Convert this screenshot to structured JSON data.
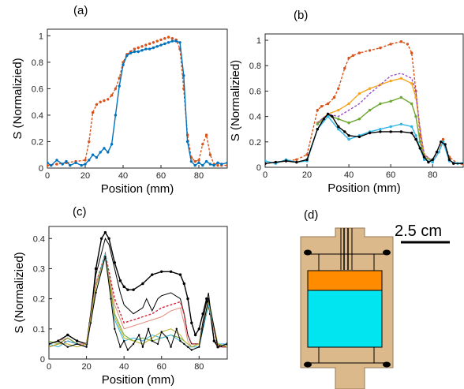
{
  "panels": {
    "a": {
      "label": "(a)"
    },
    "b": {
      "label": "(b)"
    },
    "c": {
      "label": "(c)"
    },
    "d": {
      "label": "(d)",
      "scale_bar_text": "2.5 cm"
    }
  },
  "colors": {
    "orange": "#D95319",
    "blue": "#0072BD",
    "yellow": "#F5A623",
    "purple": "#9B4FC6",
    "green": "#6DA631",
    "cyan": "#2FB5E8",
    "black": "#000000",
    "red": "#D6283A",
    "pink": "#E08A7A",
    "olive": "#B9B22A",
    "device_body": "#DBB98B",
    "device_orange": "#FF8C00",
    "device_cyan": "#00E5F0"
  },
  "chart_data": [
    {
      "panel": "a",
      "type": "line",
      "xlabel": "Position (mm)",
      "ylabel": "S (Normalizied)",
      "xlim": [
        0,
        95
      ],
      "ylim": [
        0,
        1.05
      ],
      "xticks": [
        0,
        20,
        40,
        60,
        80
      ],
      "yticks": [
        0,
        0.2,
        0.4,
        0.6,
        0.8,
        1
      ],
      "series": [
        {
          "color": "orange",
          "style": "dashed-markers",
          "x": [
            0,
            5,
            10,
            15,
            20,
            22,
            24,
            26,
            28,
            30,
            32,
            34,
            36,
            38,
            40,
            42,
            44,
            46,
            48,
            50,
            52,
            54,
            56,
            58,
            60,
            62,
            64,
            66,
            68,
            70,
            72,
            74,
            76,
            78,
            80,
            82,
            84,
            86,
            88,
            90,
            92,
            95
          ],
          "y": [
            0.02,
            0.03,
            0.04,
            0.05,
            0.06,
            0.2,
            0.42,
            0.48,
            0.5,
            0.51,
            0.52,
            0.55,
            0.6,
            0.68,
            0.8,
            0.86,
            0.88,
            0.9,
            0.91,
            0.92,
            0.93,
            0.94,
            0.95,
            0.96,
            0.97,
            0.98,
            0.99,
            0.98,
            0.97,
            0.9,
            0.6,
            0.25,
            0.08,
            0.05,
            0.06,
            0.18,
            0.25,
            0.1,
            0.03,
            0.02,
            0.02,
            0.02
          ]
        },
        {
          "color": "blue",
          "style": "solid-markers",
          "x": [
            0,
            2,
            5,
            8,
            10,
            12,
            15,
            18,
            20,
            22,
            24,
            26,
            28,
            30,
            32,
            34,
            36,
            38,
            40,
            42,
            44,
            46,
            48,
            50,
            52,
            54,
            56,
            58,
            60,
            62,
            64,
            66,
            68,
            70,
            72,
            74,
            76,
            78,
            80,
            82,
            84,
            86,
            88,
            90,
            92,
            95
          ],
          "y": [
            0.04,
            0.02,
            0.06,
            0.03,
            0.05,
            0.02,
            0.04,
            0.02,
            0.03,
            0.06,
            0.1,
            0.08,
            0.12,
            0.15,
            0.12,
            0.18,
            0.4,
            0.62,
            0.78,
            0.85,
            0.87,
            0.88,
            0.88,
            0.89,
            0.9,
            0.9,
            0.91,
            0.92,
            0.93,
            0.94,
            0.95,
            0.96,
            0.96,
            0.95,
            0.7,
            0.2,
            0.05,
            0.02,
            0.04,
            0.02,
            0.05,
            0.03,
            0.02,
            0.04,
            0.03,
            0.04
          ]
        }
      ]
    },
    {
      "panel": "b",
      "type": "line",
      "xlabel": "Position (mm)",
      "ylabel": "S (Normalizied)",
      "xlim": [
        0,
        95
      ],
      "ylim": [
        0,
        1.05
      ],
      "xticks": [
        0,
        20,
        40,
        60,
        80
      ],
      "yticks": [
        0,
        0.2,
        0.4,
        0.6,
        0.8,
        1
      ],
      "series": [
        {
          "color": "orange",
          "style": "dashed-markers",
          "x": [
            0,
            5,
            10,
            15,
            20,
            25,
            27,
            30,
            33,
            35,
            38,
            40,
            42,
            45,
            50,
            55,
            60,
            65,
            68,
            70,
            72,
            74,
            76,
            80,
            83,
            85,
            88,
            92,
            95
          ],
          "y": [
            0.03,
            0.04,
            0.05,
            0.06,
            0.1,
            0.45,
            0.48,
            0.5,
            0.55,
            0.62,
            0.78,
            0.86,
            0.88,
            0.9,
            0.92,
            0.94,
            0.97,
            0.99,
            0.97,
            0.9,
            0.6,
            0.25,
            0.08,
            0.05,
            0.12,
            0.22,
            0.08,
            0.03,
            0.02
          ]
        },
        {
          "color": "yellow",
          "style": "solid-markers",
          "x": [
            25,
            30,
            35,
            40,
            45,
            50,
            55,
            60,
            65,
            70,
            72,
            74,
            76,
            80
          ],
          "y": [
            0.35,
            0.42,
            0.45,
            0.5,
            0.58,
            0.62,
            0.65,
            0.68,
            0.7,
            0.66,
            0.55,
            0.3,
            0.1,
            0.05
          ]
        },
        {
          "color": "purple",
          "style": "dashed",
          "x": [
            25,
            30,
            35,
            40,
            45,
            50,
            55,
            60,
            65,
            70,
            72,
            74,
            76,
            80
          ],
          "y": [
            0.35,
            0.42,
            0.4,
            0.45,
            0.5,
            0.58,
            0.65,
            0.72,
            0.74,
            0.7,
            0.6,
            0.3,
            0.1,
            0.05
          ]
        },
        {
          "color": "green",
          "style": "solid-markers",
          "x": [
            25,
            30,
            35,
            40,
            45,
            50,
            55,
            60,
            65,
            70,
            72,
            74,
            76,
            80
          ],
          "y": [
            0.34,
            0.41,
            0.38,
            0.35,
            0.38,
            0.45,
            0.5,
            0.52,
            0.55,
            0.5,
            0.4,
            0.2,
            0.08,
            0.05
          ]
        },
        {
          "color": "cyan",
          "style": "solid-markers",
          "x": [
            0,
            5,
            10,
            15,
            20,
            25,
            30,
            35,
            40,
            45,
            50,
            55,
            60,
            65,
            70,
            72,
            74,
            76,
            80,
            83,
            85,
            88,
            92,
            95
          ],
          "y": [
            0.05,
            0.03,
            0.06,
            0.04,
            0.05,
            0.3,
            0.4,
            0.3,
            0.22,
            0.25,
            0.28,
            0.3,
            0.32,
            0.34,
            0.32,
            0.25,
            0.15,
            0.06,
            0.04,
            0.12,
            0.2,
            0.05,
            0.03,
            0.04
          ]
        },
        {
          "color": "black",
          "style": "solid-markers",
          "x": [
            0,
            5,
            10,
            15,
            20,
            25,
            28,
            30,
            32,
            35,
            38,
            40,
            45,
            50,
            55,
            60,
            65,
            70,
            72,
            74,
            76,
            78,
            80,
            82,
            84,
            86,
            88,
            90,
            95
          ],
          "y": [
            0.03,
            0.04,
            0.05,
            0.04,
            0.06,
            0.3,
            0.38,
            0.42,
            0.4,
            0.32,
            0.28,
            0.25,
            0.24,
            0.27,
            0.28,
            0.28,
            0.28,
            0.27,
            0.22,
            0.15,
            0.08,
            0.04,
            0.06,
            0.12,
            0.2,
            0.18,
            0.06,
            0.03,
            0.03
          ]
        }
      ]
    },
    {
      "panel": "c",
      "type": "line",
      "xlabel": "Position (mm)",
      "ylabel": "S (Normalizied)",
      "xlim": [
        0,
        95
      ],
      "ylim": [
        0,
        0.44
      ],
      "xticks": [
        0,
        20,
        40,
        60,
        80
      ],
      "yticks": [
        0,
        0.1,
        0.2,
        0.3,
        0.4
      ],
      "series": [
        {
          "color": "black",
          "style": "solid-markers",
          "x": [
            0,
            5,
            10,
            15,
            20,
            22,
            25,
            28,
            30,
            32,
            35,
            38,
            40,
            42,
            45,
            50,
            55,
            60,
            65,
            70,
            72,
            74,
            76,
            78,
            80,
            82,
            84,
            86,
            88,
            90,
            95
          ],
          "y": [
            0.05,
            0.06,
            0.08,
            0.06,
            0.05,
            0.12,
            0.3,
            0.4,
            0.42,
            0.4,
            0.32,
            0.26,
            0.24,
            0.23,
            0.23,
            0.25,
            0.28,
            0.29,
            0.29,
            0.28,
            0.25,
            0.2,
            0.12,
            0.08,
            0.1,
            0.15,
            0.2,
            0.15,
            0.06,
            0.04,
            0.05
          ]
        },
        {
          "color": "black",
          "style": "thin",
          "x": [
            0,
            5,
            10,
            15,
            20,
            25,
            30,
            32,
            35,
            38,
            40,
            45,
            50,
            52,
            55,
            58,
            60,
            65,
            70,
            72,
            74,
            76,
            80,
            83,
            85,
            88,
            92,
            95
          ],
          "y": [
            0.04,
            0.05,
            0.07,
            0.05,
            0.05,
            0.28,
            0.4,
            0.38,
            0.3,
            0.22,
            0.18,
            0.15,
            0.17,
            0.2,
            0.16,
            0.2,
            0.21,
            0.22,
            0.2,
            0.15,
            0.08,
            0.05,
            0.05,
            0.16,
            0.22,
            0.06,
            0.04,
            0.04
          ]
        },
        {
          "color": "red",
          "style": "dashed",
          "x": [
            0,
            5,
            10,
            15,
            20,
            25,
            30,
            35,
            40,
            45,
            50,
            55,
            60,
            65,
            70,
            72,
            74,
            76,
            80,
            85,
            90,
            95
          ],
          "y": [
            0.04,
            0.05,
            0.06,
            0.05,
            0.04,
            0.25,
            0.35,
            0.2,
            0.12,
            0.13,
            0.14,
            0.15,
            0.17,
            0.18,
            0.19,
            0.15,
            0.08,
            0.05,
            0.05,
            0.18,
            0.04,
            0.04
          ]
        },
        {
          "color": "pink",
          "style": "thin",
          "x": [
            0,
            5,
            10,
            15,
            20,
            25,
            30,
            35,
            40,
            45,
            50,
            55,
            60,
            65,
            70,
            72,
            74,
            76,
            80,
            85,
            90,
            95
          ],
          "y": [
            0.05,
            0.06,
            0.07,
            0.05,
            0.05,
            0.25,
            0.34,
            0.18,
            0.1,
            0.11,
            0.12,
            0.13,
            0.14,
            0.16,
            0.17,
            0.12,
            0.06,
            0.04,
            0.05,
            0.18,
            0.04,
            0.05
          ]
        },
        {
          "color": "green",
          "style": "thin",
          "x": [
            0,
            5,
            10,
            15,
            20,
            25,
            30,
            35,
            40,
            45,
            50,
            55,
            60,
            65,
            70,
            72,
            74,
            76,
            80,
            85,
            90,
            95
          ],
          "y": [
            0.06,
            0.05,
            0.07,
            0.05,
            0.04,
            0.24,
            0.35,
            0.15,
            0.08,
            0.06,
            0.07,
            0.06,
            0.07,
            0.08,
            0.07,
            0.06,
            0.05,
            0.04,
            0.05,
            0.18,
            0.05,
            0.04
          ]
        },
        {
          "color": "cyan",
          "style": "thin",
          "x": [
            0,
            5,
            10,
            15,
            20,
            25,
            30,
            35,
            40,
            45,
            50,
            55,
            60,
            65,
            70,
            72,
            74,
            76,
            80,
            85,
            90,
            95
          ],
          "y": [
            0.05,
            0.04,
            0.06,
            0.05,
            0.04,
            0.24,
            0.35,
            0.13,
            0.06,
            0.07,
            0.06,
            0.08,
            0.07,
            0.08,
            0.06,
            0.05,
            0.04,
            0.04,
            0.04,
            0.18,
            0.05,
            0.05
          ]
        },
        {
          "color": "olive",
          "style": "thin",
          "x": [
            0,
            5,
            10,
            15,
            20,
            25,
            30,
            35,
            40,
            45,
            50,
            55,
            60,
            65,
            70,
            72,
            74,
            76,
            80,
            85,
            90,
            95
          ],
          "y": [
            0.04,
            0.05,
            0.05,
            0.04,
            0.05,
            0.24,
            0.34,
            0.14,
            0.07,
            0.06,
            0.05,
            0.07,
            0.09,
            0.1,
            0.08,
            0.06,
            0.05,
            0.04,
            0.05,
            0.19,
            0.05,
            0.04
          ]
        },
        {
          "color": "black",
          "style": "thin-markers",
          "x": [
            0,
            5,
            10,
            15,
            20,
            25,
            30,
            33,
            35,
            38,
            40,
            42,
            45,
            48,
            50,
            53,
            55,
            58,
            60,
            63,
            65,
            68,
            70,
            72,
            74,
            76,
            80,
            85,
            90,
            95
          ],
          "y": [
            0.05,
            0.06,
            0.04,
            0.05,
            0.04,
            0.22,
            0.34,
            0.2,
            0.1,
            0.04,
            0.06,
            0.03,
            0.05,
            0.08,
            0.04,
            0.1,
            0.06,
            0.05,
            0.09,
            0.07,
            0.04,
            0.1,
            0.06,
            0.05,
            0.04,
            0.03,
            0.04,
            0.2,
            0.04,
            0.05
          ]
        }
      ]
    }
  ]
}
